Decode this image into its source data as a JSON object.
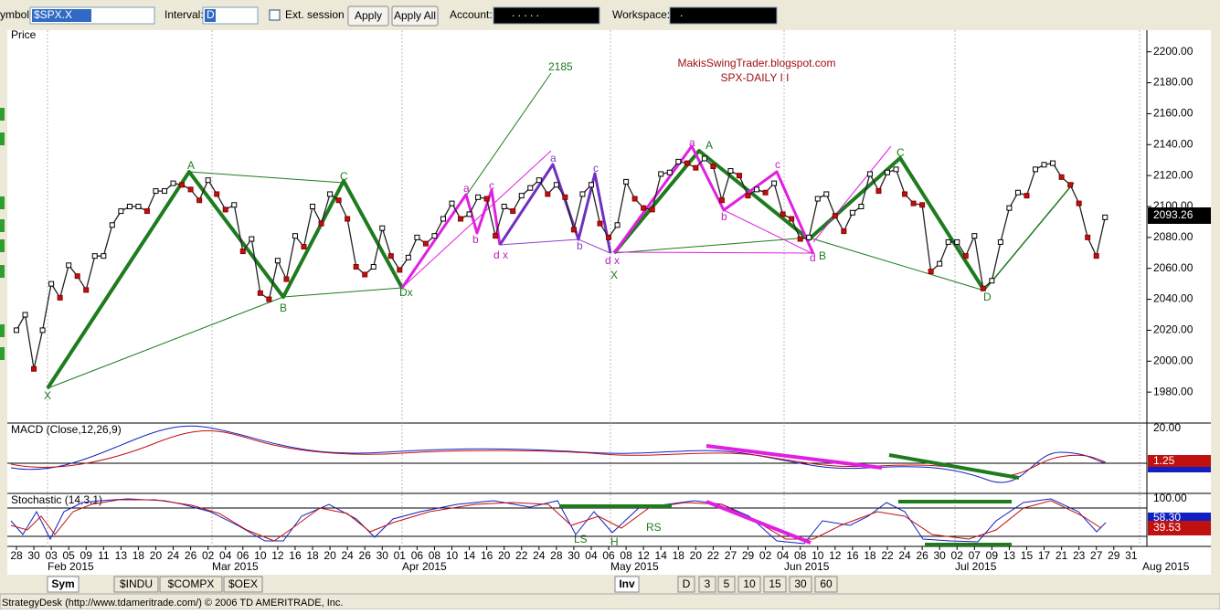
{
  "toolbar": {
    "symbol_label": "ymbol:",
    "symbol": "$SPX.X",
    "interval_label": "Interval:",
    "interval": "D",
    "ext_session": "Ext. session",
    "apply": "Apply",
    "apply_all": "Apply All",
    "account_label": "Account:",
    "account": ". . . . .",
    "workspace_label": "Workspace:",
    "workspace": "."
  },
  "chart_data": {
    "type": "line",
    "title": "MakisSwingTrader.blogspot.com",
    "subtitle": "SPX-DAILY  I I",
    "panel_label": "Price",
    "color": "#222222",
    "values": [
      2020,
      2030,
      1995,
      2020,
      2050,
      2041,
      2062,
      2055,
      2046,
      2068,
      2068,
      2088,
      2097,
      2100,
      2100,
      2097,
      2110,
      2110,
      2115,
      2114,
      2111,
      2104,
      2117,
      2108,
      2098,
      2101,
      2071,
      2079,
      2044,
      2040,
      2065,
      2053,
      2081,
      2074,
      2100,
      2089,
      2108,
      2104,
      2092,
      2061,
      2056,
      2061,
      2086,
      2068,
      2059,
      2067,
      2080,
      2076,
      2081,
      2092,
      2102,
      2092,
      2095,
      2106,
      2105,
      2081,
      2100,
      2097,
      2107,
      2112,
      2117,
      2108,
      2114,
      2106,
      2085,
      2108,
      2114,
      2089,
      2080,
      2088,
      2116,
      2105,
      2099,
      2098,
      2121,
      2122,
      2129,
      2128,
      2125,
      2131,
      2126,
      2104,
      2123,
      2120,
      2107,
      2111,
      2109,
      2115,
      2095,
      2092,
      2079,
      2080,
      2105,
      2108,
      2094,
      2084,
      2096,
      2100,
      2121,
      2110,
      2122,
      2124,
      2108,
      2102,
      2101,
      2058,
      2063,
      2077,
      2077,
      2068,
      2081,
      2047,
      2052,
      2077,
      2099,
      2109,
      2107,
      2124,
      2127,
      2128,
      2119,
      2114,
      2102,
      2080,
      2068,
      2093
    ],
    "ylim": [
      1960,
      2214
    ],
    "yticks": [
      {
        "value": 1980,
        "label": "1980.00"
      },
      {
        "value": 2000,
        "label": "2000.00"
      },
      {
        "value": 2020,
        "label": "2020.00"
      },
      {
        "value": 2040,
        "label": "2040.00"
      },
      {
        "value": 2060,
        "label": "2060.00"
      },
      {
        "value": 2080,
        "label": "2080.00"
      },
      {
        "value": 2100,
        "label": "2100.00"
      },
      {
        "value": 2120,
        "label": "2120.00"
      },
      {
        "value": 2140,
        "label": "2140.00"
      },
      {
        "value": 2160,
        "label": "2160.00"
      },
      {
        "value": 2180,
        "label": "2180.00"
      },
      {
        "value": 2200,
        "label": "2200.00"
      }
    ],
    "last_value": {
      "value": 2093.26,
      "label": "2093.26"
    },
    "annotations": [
      "2185",
      "A",
      "B",
      "C",
      "D",
      "X",
      "a",
      "b",
      "c",
      "d",
      "x",
      "LS",
      "H",
      "RS",
      "Dx",
      "d x"
    ],
    "xticks": [
      "28",
      "30",
      "03",
      "05",
      "09",
      "11",
      "13",
      "18",
      "20",
      "24",
      "26",
      "02",
      "04",
      "06",
      "10",
      "12",
      "16",
      "18",
      "20",
      "24",
      "26",
      "30",
      "01",
      "06",
      "08",
      "10",
      "14",
      "16",
      "20",
      "22",
      "24",
      "28",
      "30",
      "04",
      "06",
      "08",
      "12",
      "14",
      "18",
      "20",
      "22",
      "27",
      "29",
      "02",
      "04",
      "08",
      "10",
      "12",
      "16",
      "18",
      "22",
      "24",
      "26",
      "30",
      "02",
      "07",
      "09",
      "13",
      "15",
      "17",
      "21",
      "23",
      "27",
      "29",
      "31"
    ],
    "months": [
      "Feb 2015",
      "Mar 2015",
      "Apr 2015",
      "May 2015",
      "Jun 2015",
      "Jul 2015",
      "Aug 2015"
    ]
  },
  "macd": {
    "label": "MACD (Close,12,26,9)",
    "top": {
      "value": 20,
      "label": "20.00"
    },
    "last": {
      "value": 1.25,
      "label": "1.25"
    }
  },
  "stochastic": {
    "label": "Stochastic (14,3,1)",
    "top": {
      "value": 100,
      "label": "100.00"
    },
    "k": {
      "value": 58.3,
      "label": "58.30"
    },
    "d": {
      "value": 39.53,
      "label": "39.53"
    }
  },
  "tabs": [
    "Sym",
    "$INDU",
    "$COMPX",
    "$OEX",
    "Inv",
    "D",
    "3",
    "5",
    "10",
    "15",
    "30",
    "60"
  ],
  "status": "StrategyDesk (http://www.tdameritrade.com/) © 2006 TD AMERITRADE, Inc."
}
